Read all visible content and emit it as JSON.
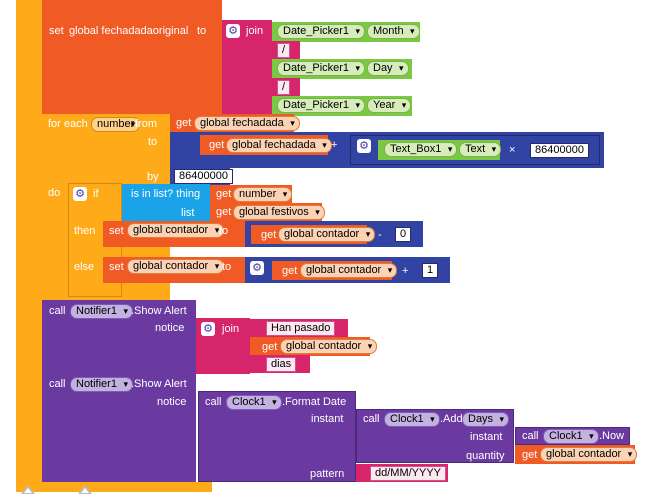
{
  "colors": {
    "control": "#ffab19",
    "variable": "#f05a24",
    "text": "#d6256a",
    "component": "#7ac943",
    "call": "#6a3aa0",
    "math": "#3143a3",
    "list": "#1aa3e8"
  },
  "set_block": {
    "set_kw": "set",
    "var_name": "global fechadadaoriginal",
    "to_kw": "to",
    "join_kw": "join",
    "items": [
      {
        "component": "Date_Picker1",
        "property": "Month"
      },
      {
        "string": "/"
      },
      {
        "component": "Date_Picker1",
        "property": "Day"
      },
      {
        "string": "/"
      },
      {
        "component": "Date_Picker1",
        "property": "Year"
      }
    ]
  },
  "for_each": {
    "label": "for each",
    "var": "number",
    "from_kw": "from",
    "get_kw": "get",
    "from_var": "global fechadada",
    "to_kw": "to",
    "to_var": "global fechadada",
    "plus_op": "+",
    "textbox_component": "Text_Box1",
    "textbox_property": "Text",
    "times_op": "×",
    "multiplier": "86400000",
    "by_kw": "by",
    "by_value": "86400000",
    "do_kw": "do"
  },
  "if_block": {
    "if_kw": "if",
    "is_in_list": "is in list? thing",
    "list_kw": "list",
    "get_kw": "get",
    "thing_var": "number",
    "list_var": "global festivos",
    "then_kw": "then",
    "else_kw": "else",
    "set_kw": "set",
    "to_kw": "to",
    "counter_var": "global contador",
    "minus_op": "-",
    "minus_value": "0",
    "plus_op": "+",
    "plus_value": "1"
  },
  "notifier1": {
    "call_kw": "call",
    "component": "Notifier1",
    "method": ".Show Alert",
    "notice_kw": "notice",
    "join_kw": "join",
    "part1": "Han pasado",
    "get_kw": "get",
    "var": "global contador",
    "part3": "dias"
  },
  "notifier2": {
    "call_kw": "call",
    "component": "Notifier1",
    "method": ".Show Alert",
    "notice_kw": "notice",
    "format_call": "call",
    "clock_component": "Clock1",
    "format_method": ".Format Date",
    "instant_kw": "instant",
    "add_call": "call",
    "add_component": "Clock1",
    "add_method": ".Add",
    "add_unit": "Days",
    "instant_sub_kw": "instant",
    "now_call": "call",
    "now_component": "Clock1",
    "now_method": ".Now",
    "quantity_kw": "quantity",
    "get_kw": "get",
    "quantity_var": "global contador",
    "pattern_kw": "pattern",
    "pattern_value": "dd/MM/YYYY"
  }
}
